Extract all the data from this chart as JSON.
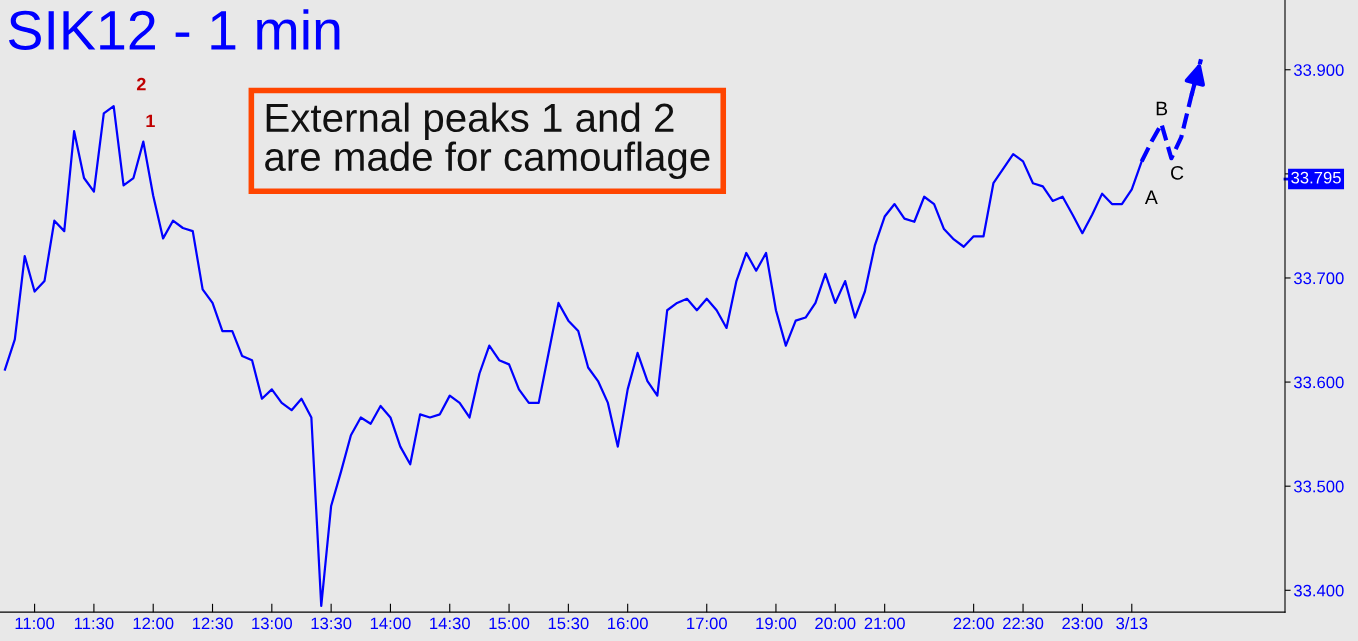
{
  "chart_data": {
    "type": "line",
    "title": "SIK12 - 1 min",
    "categories": [
      null,
      null,
      null,
      "11:00",
      null,
      null,
      null,
      null,
      null,
      "11:30",
      null,
      null,
      null,
      null,
      null,
      "12:00",
      null,
      null,
      null,
      null,
      null,
      "12:30",
      null,
      null,
      null,
      null,
      null,
      "13:00",
      null,
      null,
      null,
      null,
      null,
      "13:30",
      null,
      null,
      null,
      null,
      null,
      "14:00",
      null,
      null,
      null,
      null,
      null,
      "14:30",
      null,
      null,
      null,
      null,
      null,
      "15:00",
      null,
      null,
      null,
      null,
      null,
      "15:30",
      null,
      null,
      null,
      null,
      null,
      "16:00",
      null,
      null,
      null,
      null,
      null,
      null,
      null,
      "17:00",
      null,
      null,
      null,
      null,
      null,
      null,
      "19:00",
      null,
      null,
      null,
      null,
      null,
      "20:00",
      null,
      null,
      null,
      null,
      "21:00",
      null,
      null,
      null,
      null,
      null,
      null,
      null,
      null,
      "22:00",
      null,
      null,
      null,
      null,
      "22:30",
      null,
      null,
      null,
      null,
      null,
      "23:00",
      null,
      null,
      null,
      null,
      "3/13",
      null,
      null,
      null,
      null,
      null,
      null,
      null,
      null,
      null,
      null,
      null,
      null,
      null,
      null,
      null
    ],
    "series": [
      {
        "color": "#0000ff",
        "line_style": "solid",
        "values": [
          33.612,
          33.641,
          33.721,
          33.687,
          33.697,
          33.755,
          33.745,
          33.841,
          33.796,
          33.783,
          33.858,
          33.865,
          33.789,
          33.796,
          33.831,
          33.779,
          33.738,
          33.755,
          33.748,
          33.745,
          33.689,
          33.676,
          33.649,
          33.649,
          33.625,
          33.621,
          33.584,
          33.593,
          33.58,
          33.573,
          33.584,
          33.566,
          33.385,
          33.481,
          33.514,
          33.549,
          33.566,
          33.56,
          33.577,
          33.566,
          33.538,
          33.521,
          33.569,
          33.566,
          33.569,
          33.587,
          33.58,
          33.566,
          33.608,
          33.635,
          33.621,
          33.617,
          33.593,
          33.58,
          33.58,
          33.628,
          33.676,
          33.659,
          33.649,
          33.614,
          33.601,
          33.58,
          33.538,
          33.593,
          33.628,
          33.601,
          33.587,
          33.669,
          33.676,
          33.68,
          33.669,
          33.68,
          33.669,
          33.652,
          33.697,
          33.724,
          33.707,
          33.724,
          33.669,
          33.635,
          33.659,
          33.662,
          33.676,
          33.704,
          33.676,
          33.697,
          33.662,
          33.687,
          33.731,
          33.759,
          33.771,
          33.757,
          33.754,
          33.778,
          33.771,
          33.747,
          33.737,
          33.73,
          33.74,
          33.74,
          33.791,
          33.805,
          33.819,
          33.812,
          33.791,
          33.788,
          33.774,
          33.778,
          33.761,
          33.743,
          33.761,
          33.781,
          33.771,
          33.771,
          33.785,
          33.812,
          null,
          null,
          null,
          null,
          null,
          null,
          null,
          null,
          null,
          null,
          null,
          null,
          null,
          null
        ]
      },
      {
        "color": "#0000ff",
        "line_style": "dashed",
        "values": [
          null,
          null,
          null,
          null,
          null,
          null,
          null,
          null,
          null,
          null,
          null,
          null,
          null,
          null,
          null,
          null,
          null,
          null,
          null,
          null,
          null,
          null,
          null,
          null,
          null,
          null,
          null,
          null,
          null,
          null,
          null,
          null,
          null,
          null,
          null,
          null,
          null,
          null,
          null,
          null,
          null,
          null,
          null,
          null,
          null,
          null,
          null,
          null,
          null,
          null,
          null,
          null,
          null,
          null,
          null,
          null,
          null,
          null,
          null,
          null,
          null,
          null,
          null,
          null,
          null,
          null,
          null,
          null,
          null,
          null,
          null,
          null,
          null,
          null,
          null,
          null,
          null,
          null,
          null,
          null,
          null,
          null,
          null,
          null,
          null,
          null,
          null,
          null,
          null,
          null,
          null,
          null,
          null,
          null,
          null,
          null,
          null,
          null,
          null,
          null,
          null,
          null,
          null,
          null,
          null,
          null,
          null,
          null,
          null,
          null,
          null,
          null,
          null,
          null,
          null,
          33.812,
          33.831,
          33.848,
          33.815,
          33.835,
          33.874,
          33.91,
          null,
          null,
          null,
          null,
          null,
          null,
          null,
          null
        ]
      }
    ],
    "ylim": [
      33.379,
      33.967
    ],
    "yticks": [
      {
        "value": 33.4,
        "label": "33.400"
      },
      {
        "value": 33.5,
        "label": "33.500"
      },
      {
        "value": 33.6,
        "label": "33.600"
      },
      {
        "value": 33.7,
        "label": "33.700"
      },
      {
        "value": 33.8,
        "label": null
      },
      {
        "value": 33.9,
        "label": "33.900"
      }
    ],
    "ref_lines": [
      {
        "axis": "y",
        "value": 33.795,
        "label": "33.795",
        "color": "#0000ff"
      }
    ],
    "annotations": [
      "External peaks 1 and 2\nare made for camouflage",
      "2",
      "1",
      "A",
      "B",
      "C"
    ],
    "grid": false,
    "legend": false,
    "marker": "none"
  }
}
